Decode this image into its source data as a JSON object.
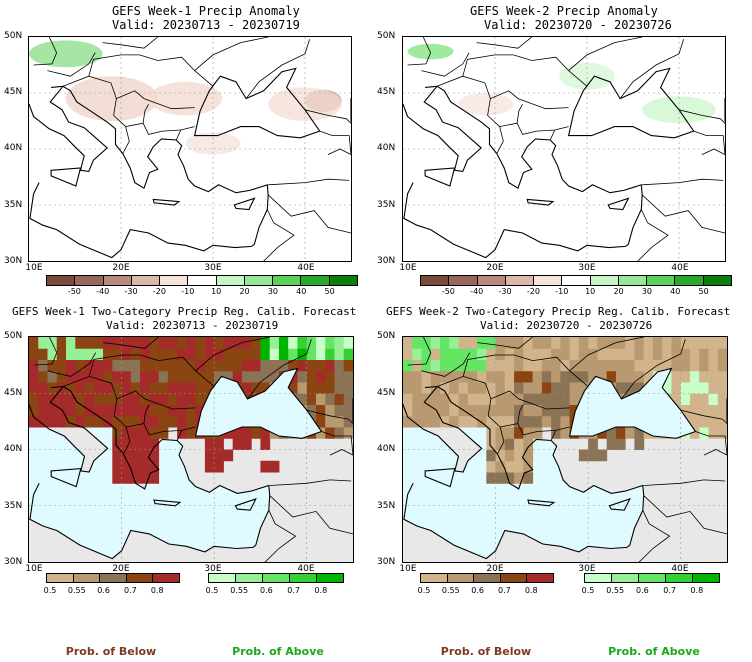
{
  "chart_data": [
    {
      "type": "heatmap",
      "title": "GEFS Week-1 Precip Anomaly",
      "subtitle": "Valid: 20230713 - 20230719",
      "xticks": [
        "10E",
        "20E",
        "30E",
        "40E"
      ],
      "yticks": [
        "50N",
        "45N",
        "40N",
        "35N",
        "30N"
      ],
      "xlim": [
        10,
        45
      ],
      "ylim": [
        30,
        50
      ],
      "colorbar": {
        "labels": [
          "-50",
          "-40",
          "-30",
          "-20",
          "-10",
          "10",
          "20",
          "30",
          "40",
          "50"
        ],
        "colors": [
          "#7a4a3a",
          "#96675a",
          "#b88a7d",
          "#dcb8aa",
          "#f5e3da",
          "#ffffff",
          "#c8f5c8",
          "#96e896",
          "#5ad25a",
          "#2aa82a",
          "#0a800a"
        ]
      }
    },
    {
      "type": "heatmap",
      "title": "GEFS Week-2 Precip Anomaly",
      "subtitle": "Valid: 20230720 - 20230726",
      "xticks": [
        "10E",
        "20E",
        "30E",
        "40E"
      ],
      "yticks": [
        "50N",
        "45N",
        "40N",
        "35N",
        "30N"
      ],
      "xlim": [
        10,
        45
      ],
      "ylim": [
        30,
        50
      ],
      "colorbar": {
        "labels": [
          "-50",
          "-40",
          "-30",
          "-20",
          "-10",
          "10",
          "20",
          "30",
          "40",
          "50"
        ],
        "colors": [
          "#7a4a3a",
          "#96675a",
          "#b88a7d",
          "#dcb8aa",
          "#f5e3da",
          "#ffffff",
          "#c8f5c8",
          "#96e896",
          "#5ad25a",
          "#2aa82a",
          "#0a800a"
        ]
      }
    },
    {
      "type": "heatmap",
      "title": "GEFS Week-1 Two-Category Precip Reg. Calib. Forecast",
      "subtitle": "Valid: 20230713 - 20230719",
      "xticks": [
        "10E",
        "20E",
        "30E",
        "40E"
      ],
      "yticks": [
        "50N",
        "45N",
        "40N",
        "35N",
        "30N"
      ],
      "xlim": [
        10,
        45
      ],
      "ylim": [
        30,
        50
      ],
      "below_colorbar": {
        "labels": [
          "0.5",
          "0.55",
          "0.6",
          "0.7",
          "0.8"
        ],
        "colors": [
          "#d2b48c",
          "#b99a70",
          "#8b7355",
          "#8b4513",
          "#a52a2a"
        ]
      },
      "above_colorbar": {
        "labels": [
          "0.5",
          "0.55",
          "0.6",
          "0.7",
          "0.8"
        ],
        "colors": [
          "#c8ffc8",
          "#96f096",
          "#64e664",
          "#32d232",
          "#00b400"
        ]
      }
    },
    {
      "type": "heatmap",
      "title": "GEFS Week-2 Two-Category Precip Reg. Calib. Forecast",
      "subtitle": "Valid: 20230720 - 20230726",
      "xticks": [
        "10E",
        "20E",
        "30E",
        "40E"
      ],
      "yticks": [
        "50N",
        "45N",
        "40N",
        "35N",
        "30N"
      ],
      "xlim": [
        10,
        45
      ],
      "ylim": [
        30,
        50
      ],
      "below_colorbar": {
        "labels": [
          "0.5",
          "0.55",
          "0.6",
          "0.7",
          "0.8"
        ],
        "colors": [
          "#d2b48c",
          "#b99a70",
          "#8b7355",
          "#8b4513",
          "#a52a2a"
        ]
      },
      "above_colorbar": {
        "labels": [
          "0.5",
          "0.55",
          "0.6",
          "0.7",
          "0.8"
        ],
        "colors": [
          "#c8ffc8",
          "#96f096",
          "#64e664",
          "#32d232",
          "#00b400"
        ]
      }
    }
  ],
  "legend": {
    "below": "Prob. of Below",
    "above": "Prob. of Above",
    "below_color": "#7a3b1e",
    "above_color": "#1aa81a"
  },
  "colors": {
    "sea_fill": "#e0fbff",
    "nodata_fill": "#e8e8e8"
  }
}
